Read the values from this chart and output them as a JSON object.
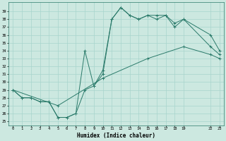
{
  "title": "",
  "xlabel": "Humidex (Indice chaleur)",
  "ylabel": "",
  "bg_color": "#cce8e0",
  "line_color": "#2a7a6a",
  "grid_color": "#a8d4cc",
  "ylim": [
    24.5,
    40.2
  ],
  "xlim": [
    -0.5,
    23.5
  ],
  "yticks": [
    25,
    26,
    27,
    28,
    29,
    30,
    31,
    32,
    33,
    34,
    35,
    36,
    37,
    38,
    39
  ],
  "xticks": [
    0,
    1,
    2,
    3,
    4,
    5,
    6,
    7,
    8,
    9,
    10,
    11,
    12,
    13,
    14,
    15,
    16,
    17,
    18,
    19,
    22,
    23
  ],
  "line1_x": [
    0,
    1,
    2,
    3,
    4,
    5,
    6,
    7,
    8,
    9,
    10,
    11,
    12,
    13,
    14,
    15,
    16,
    17,
    18,
    19,
    22,
    23
  ],
  "line1_y": [
    29,
    28,
    28,
    27.5,
    27.5,
    25.5,
    25.5,
    26,
    34,
    29.5,
    31,
    38,
    39.5,
    38.5,
    38,
    38.5,
    38,
    38.5,
    37,
    38,
    36,
    34
  ],
  "line2_x": [
    0,
    1,
    2,
    3,
    4,
    5,
    6,
    7,
    8,
    9,
    10,
    11,
    12,
    13,
    14,
    15,
    16,
    17,
    18,
    19,
    22,
    23
  ],
  "line2_y": [
    29,
    28,
    28,
    27.5,
    27.5,
    25.5,
    25.5,
    26,
    29,
    29.5,
    31.5,
    38,
    39.5,
    38.5,
    38,
    38.5,
    38.5,
    38.5,
    37.5,
    38,
    34.5,
    33.5
  ],
  "line3_x": [
    0,
    5,
    10,
    15,
    19,
    22,
    23
  ],
  "line3_y": [
    29,
    27,
    30.5,
    33,
    34.5,
    33.5,
    33
  ]
}
